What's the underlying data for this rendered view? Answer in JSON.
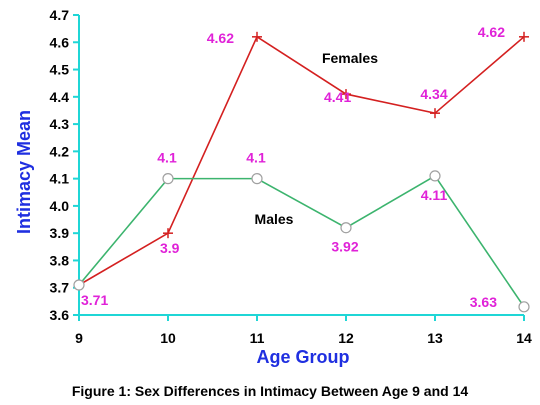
{
  "chart_data": {
    "type": "line",
    "title": "",
    "xlabel": "Age Group",
    "ylabel": "Intimacy Mean",
    "caption": "Figure 1: Sex Differences in Intimacy Between Age 9 and 14",
    "categories": [
      "9",
      "10",
      "11",
      "12",
      "13",
      "14"
    ],
    "y_ticks": [
      "3.6",
      "3.7",
      "3.8",
      "3.9",
      "4.0",
      "4.1",
      "4.2",
      "4.3",
      "4.4",
      "4.5",
      "4.6",
      "4.7"
    ],
    "ylim": [
      3.6,
      4.7
    ],
    "grid": false,
    "series": [
      {
        "name": "Females",
        "color": "#d42020",
        "marker": "plus",
        "values": [
          3.71,
          3.9,
          4.62,
          4.41,
          4.34,
          4.62
        ],
        "labels": [
          "3.71",
          "3.9",
          "4.62",
          "4.41",
          "4.34",
          "4.62"
        ]
      },
      {
        "name": "Males",
        "color": "#3cb46e",
        "marker": "circle",
        "values": [
          3.71,
          4.1,
          4.1,
          3.92,
          4.11,
          3.63
        ],
        "labels": [
          "",
          "4.1",
          "4.1",
          "3.92",
          "4.11",
          "3.63"
        ]
      }
    ],
    "colors": {
      "axis": "#1fd6d6",
      "label_color": "#e022d8",
      "axis_title_color": "#1f2fe0"
    }
  }
}
